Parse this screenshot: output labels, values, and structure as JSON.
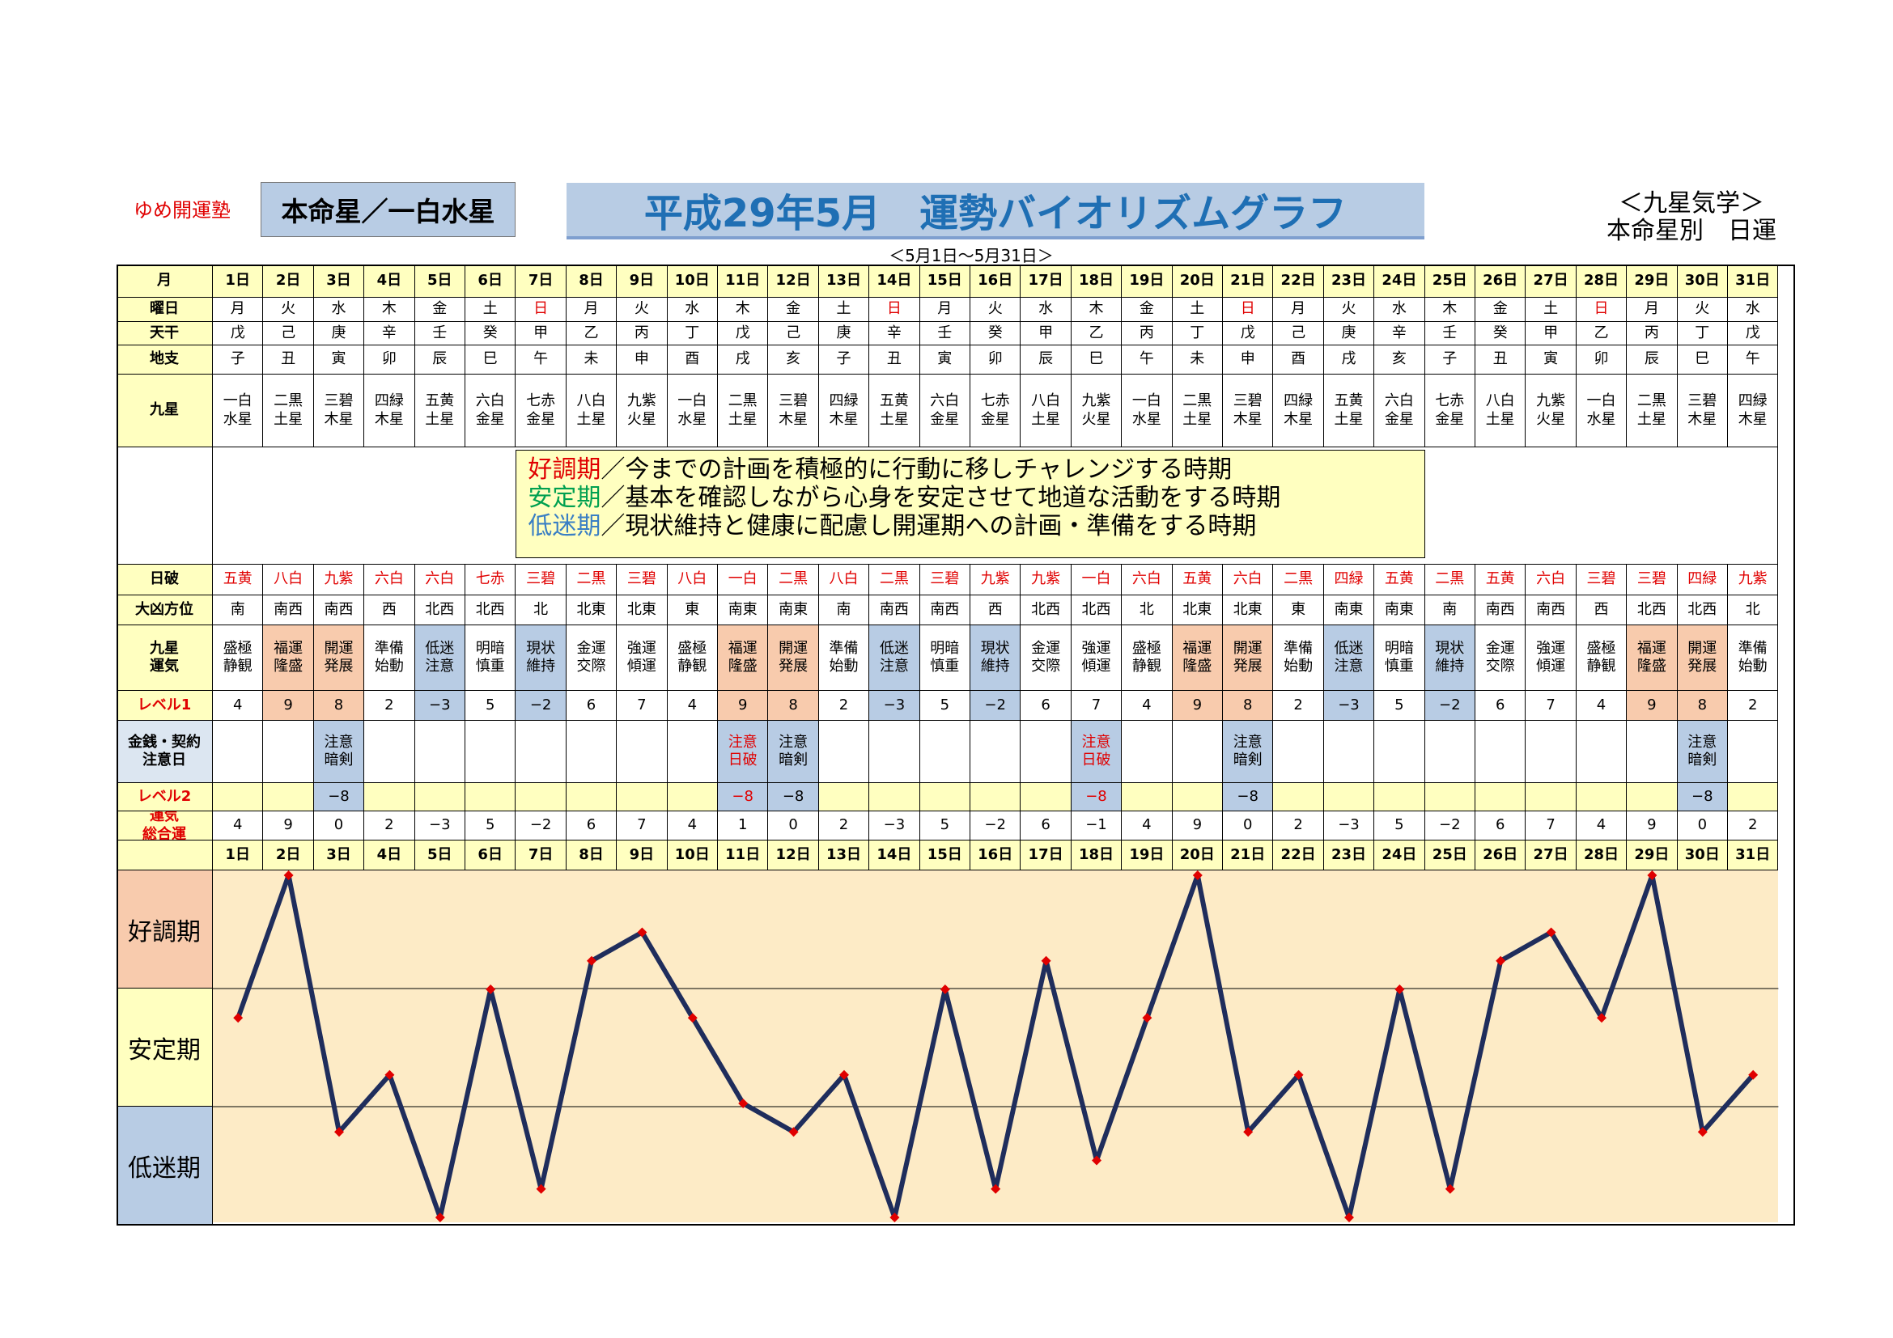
{
  "header": {
    "brand": "ゆめ開運塾",
    "honmei": "本命星／一白水星",
    "title": "平成29年5月　運勢バイオリズムグラフ",
    "corner_line1": "＜九星気学＞",
    "corner_line2": "本命星別　日運",
    "range": "＜5月1日～5月31日＞"
  },
  "row_labels": {
    "month": "月",
    "weekday": "曜日",
    "tenkan": "天干",
    "chishi": "地支",
    "kyusei": "九星",
    "nippa": "日破",
    "daikyo": "大凶方位",
    "unki": "九星\n運気",
    "level1": "レベル1",
    "money": "金銭・契約\n注意日",
    "level2": "レベル2",
    "total": "運気\n総合運"
  },
  "days": [
    "1日",
    "2日",
    "3日",
    "4日",
    "5日",
    "6日",
    "7日",
    "8日",
    "9日",
    "10日",
    "11日",
    "12日",
    "13日",
    "14日",
    "15日",
    "16日",
    "17日",
    "18日",
    "19日",
    "20日",
    "21日",
    "22日",
    "23日",
    "24日",
    "25日",
    "26日",
    "27日",
    "28日",
    "29日",
    "30日",
    "31日"
  ],
  "weekdays": [
    "月",
    "火",
    "水",
    "木",
    "金",
    "土",
    "日",
    "月",
    "火",
    "水",
    "木",
    "金",
    "土",
    "日",
    "月",
    "火",
    "水",
    "木",
    "金",
    "土",
    "日",
    "月",
    "火",
    "水",
    "木",
    "金",
    "土",
    "日",
    "月",
    "火",
    "水"
  ],
  "tenkan": [
    "戊",
    "己",
    "庚",
    "辛",
    "壬",
    "癸",
    "甲",
    "乙",
    "丙",
    "丁",
    "戊",
    "己",
    "庚",
    "辛",
    "壬",
    "癸",
    "甲",
    "乙",
    "丙",
    "丁",
    "戊",
    "己",
    "庚",
    "辛",
    "壬",
    "癸",
    "甲",
    "乙",
    "丙",
    "丁",
    "戊"
  ],
  "chishi": [
    "子",
    "丑",
    "寅",
    "卯",
    "辰",
    "巳",
    "午",
    "未",
    "申",
    "酉",
    "戌",
    "亥",
    "子",
    "丑",
    "寅",
    "卯",
    "辰",
    "巳",
    "午",
    "未",
    "申",
    "酉",
    "戌",
    "亥",
    "子",
    "丑",
    "寅",
    "卯",
    "辰",
    "巳",
    "午"
  ],
  "kyusei": [
    "一白\n水星",
    "二黒\n土星",
    "三碧\n木星",
    "四緑\n木星",
    "五黄\n土星",
    "六白\n金星",
    "七赤\n金星",
    "八白\n土星",
    "九紫\n火星",
    "一白\n水星",
    "二黒\n土星",
    "三碧\n木星",
    "四緑\n木星",
    "五黄\n土星",
    "六白\n金星",
    "七赤\n金星",
    "八白\n土星",
    "九紫\n火星",
    "一白\n水星",
    "二黒\n土星",
    "三碧\n木星",
    "四緑\n木星",
    "五黄\n土星",
    "六白\n金星",
    "七赤\n金星",
    "八白\n土星",
    "九紫\n火星",
    "一白\n水星",
    "二黒\n土星",
    "三碧\n木星",
    "四緑\n木星"
  ],
  "memo": [
    {
      "key": "好調期",
      "color": "#e00000",
      "text": "／今までの計画を積極的に行動に移しチャレンジする時期"
    },
    {
      "key": "安定期",
      "color": "#00a050",
      "text": "／基本を確認しながら心身を安定させて地道な活動をする時期"
    },
    {
      "key": "低迷期",
      "color": "#3a7fc4",
      "text": "／現状維持と健康に配慮し開運期への計画・準備をする時期"
    }
  ],
  "nippa": [
    "五黄",
    "八白",
    "九紫",
    "六白",
    "六白",
    "七赤",
    "三碧",
    "二黒",
    "三碧",
    "八白",
    "一白",
    "二黒",
    "八白",
    "二黒",
    "三碧",
    "九紫",
    "九紫",
    "一白",
    "六白",
    "五黄",
    "六白",
    "二黒",
    "四緑",
    "五黄",
    "二黒",
    "五黄",
    "六白",
    "三碧",
    "三碧",
    "四緑",
    "九紫"
  ],
  "daikyo": [
    "南",
    "南西",
    "南西",
    "西",
    "北西",
    "北西",
    "北",
    "北東",
    "北東",
    "東",
    "南東",
    "南東",
    "南",
    "南西",
    "南西",
    "西",
    "北西",
    "北西",
    "北",
    "北東",
    "北東",
    "東",
    "南東",
    "南東",
    "南",
    "南西",
    "南西",
    "西",
    "北西",
    "北西",
    "北"
  ],
  "unki": [
    "盛極\n静観",
    "福運\n隆盛",
    "開運\n発展",
    "準備\n始動",
    "低迷\n注意",
    "明暗\n慎重",
    "現状\n維持",
    "金運\n交際",
    "強運\n傾運",
    "盛極\n静観",
    "福運\n隆盛",
    "開運\n発展",
    "準備\n始動",
    "低迷\n注意",
    "明暗\n慎重",
    "現状\n維持",
    "金運\n交際",
    "強運\n傾運",
    "盛極\n静観",
    "福運\n隆盛",
    "開運\n発展",
    "準備\n始動",
    "低迷\n注意",
    "明暗\n慎重",
    "現状\n維持",
    "金運\n交際",
    "強運\n傾運",
    "盛極\n静観",
    "福運\n隆盛",
    "開運\n発展",
    "準備\n始動"
  ],
  "level1": [
    "4",
    "9",
    "8",
    "2",
    "−3",
    "5",
    "−2",
    "6",
    "7",
    "4",
    "9",
    "8",
    "2",
    "−3",
    "5",
    "−2",
    "6",
    "7",
    "4",
    "9",
    "8",
    "2",
    "−3",
    "5",
    "−2",
    "6",
    "7",
    "4",
    "9",
    "8",
    "2"
  ],
  "money": [
    "",
    "",
    "注意\n暗剣",
    "",
    "",
    "",
    "",
    "",
    "",
    "",
    "注意\n日破",
    "注意\n暗剣",
    "",
    "",
    "",
    "",
    "",
    "注意\n日破",
    "",
    "",
    "注意\n暗剣",
    "",
    "",
    "",
    "",
    "",
    "",
    "",
    "",
    "注意\n暗剣",
    ""
  ],
  "level2": [
    "",
    "",
    "−8",
    "",
    "",
    "",
    "",
    "",
    "",
    "",
    "−8",
    "−8",
    "",
    "",
    "",
    "",
    "",
    "−8",
    "",
    "",
    "−8",
    "",
    "",
    "",
    "",
    "",
    "",
    "",
    "",
    "−8",
    ""
  ],
  "total": [
    "4",
    "9",
    "0",
    "2",
    "−3",
    "5",
    "−2",
    "6",
    "7",
    "4",
    "1",
    "0",
    "2",
    "−3",
    "5",
    "−2",
    "6",
    "−1",
    "4",
    "9",
    "0",
    "2",
    "−3",
    "5",
    "−2",
    "6",
    "7",
    "4",
    "9",
    "0",
    "2"
  ],
  "bands": [
    "好調期",
    "安定期",
    "低迷期"
  ],
  "chart_data": {
    "type": "line",
    "categories": [
      "1日",
      "2日",
      "3日",
      "4日",
      "5日",
      "6日",
      "7日",
      "8日",
      "9日",
      "10日",
      "11日",
      "12日",
      "13日",
      "14日",
      "15日",
      "16日",
      "17日",
      "18日",
      "19日",
      "20日",
      "21日",
      "22日",
      "23日",
      "24日",
      "25日",
      "26日",
      "27日",
      "28日",
      "29日",
      "30日",
      "31日"
    ],
    "series": [
      {
        "values": [
          4,
          9,
          0,
          2,
          -3,
          5,
          -2,
          6,
          7,
          4,
          1,
          0,
          2,
          -3,
          5,
          -2,
          6,
          -1,
          4,
          9,
          0,
          2,
          -3,
          5,
          -2,
          6,
          7,
          4,
          9,
          0,
          2
        ]
      }
    ],
    "ylim": [
      -3,
      9
    ],
    "line_color": "#1f2d5c",
    "marker_color": "#e00000",
    "bands": [
      {
        "label": "好調期",
        "color": "#f8cbad"
      },
      {
        "label": "安定期",
        "color": "#ffffc0"
      },
      {
        "label": "低迷期",
        "color": "#b8cce4"
      }
    ],
    "title": "",
    "xlabel": "",
    "ylabel": ""
  }
}
